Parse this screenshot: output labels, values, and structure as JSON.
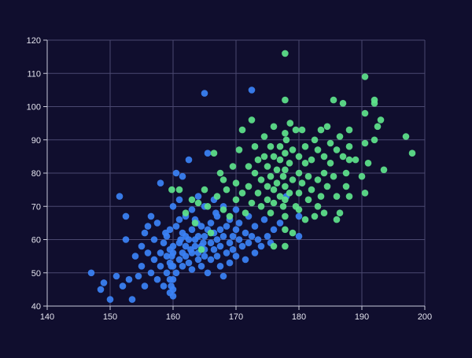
{
  "chart_data": {
    "type": "scatter",
    "title": "",
    "xlabel": "",
    "ylabel": "",
    "xlim": [
      140,
      200
    ],
    "ylim": [
      40,
      120
    ],
    "x_ticks": [
      140,
      150,
      160,
      170,
      180,
      190,
      200
    ],
    "y_ticks": [
      40,
      50,
      60,
      70,
      80,
      90,
      100,
      110,
      120
    ],
    "grid": true,
    "legend": "none",
    "colors": {
      "background": "#100e2e",
      "grid": "#4a4870",
      "axis": "#c9c9d9",
      "tick_text": "#e4e4ee"
    },
    "series": [
      {
        "color": "#3b82f6",
        "points": [
          [
            147,
            50
          ],
          [
            148.5,
            45
          ],
          [
            149,
            47
          ],
          [
            150,
            42
          ],
          [
            151,
            49
          ],
          [
            151.5,
            73
          ],
          [
            152,
            46
          ],
          [
            152.5,
            60
          ],
          [
            152.5,
            67
          ],
          [
            153,
            48
          ],
          [
            153.5,
            42
          ],
          [
            154,
            55
          ],
          [
            154.5,
            49
          ],
          [
            155,
            52
          ],
          [
            155,
            58
          ],
          [
            155.5,
            46
          ],
          [
            155.5,
            62
          ],
          [
            156,
            56
          ],
          [
            156,
            64
          ],
          [
            156.5,
            50
          ],
          [
            156.5,
            67
          ],
          [
            157,
            54
          ],
          [
            157,
            60
          ],
          [
            157.5,
            48
          ],
          [
            157.5,
            65
          ],
          [
            158,
            56
          ],
          [
            158,
            52
          ],
          [
            158,
            77
          ],
          [
            158.5,
            46
          ],
          [
            158.5,
            59
          ],
          [
            159,
            61
          ],
          [
            159,
            55
          ],
          [
            159,
            50
          ],
          [
            159.5,
            57
          ],
          [
            159.5,
            63
          ],
          [
            159.5,
            53
          ],
          [
            159.5,
            48
          ],
          [
            159.5,
            44
          ],
          [
            159.7,
            52
          ],
          [
            159.7,
            46
          ],
          [
            159.8,
            55
          ],
          [
            160,
            58
          ],
          [
            160,
            52
          ],
          [
            160,
            48
          ],
          [
            160,
            45
          ],
          [
            160,
            43
          ],
          [
            160,
            56
          ],
          [
            160,
            70
          ],
          [
            160.5,
            50
          ],
          [
            160.5,
            64
          ],
          [
            160.5,
            80
          ],
          [
            161,
            54
          ],
          [
            161,
            59
          ],
          [
            161,
            66
          ],
          [
            161,
            72
          ],
          [
            161.5,
            56
          ],
          [
            161.5,
            52
          ],
          [
            161.5,
            62
          ],
          [
            161.5,
            79
          ],
          [
            162,
            58
          ],
          [
            162,
            61
          ],
          [
            162,
            55
          ],
          [
            162,
            67
          ],
          [
            162.5,
            53
          ],
          [
            162.5,
            60
          ],
          [
            162.5,
            84
          ],
          [
            163,
            56
          ],
          [
            163,
            63
          ],
          [
            163,
            69
          ],
          [
            163,
            51
          ],
          [
            163.5,
            58
          ],
          [
            163.5,
            66
          ],
          [
            163.5,
            60
          ],
          [
            164,
            54
          ],
          [
            164,
            61
          ],
          [
            164,
            73
          ],
          [
            164,
            56
          ],
          [
            164.5,
            52
          ],
          [
            164.5,
            58
          ],
          [
            164.5,
            64
          ],
          [
            165,
            57
          ],
          [
            165,
            61
          ],
          [
            165,
            70
          ],
          [
            165,
            104
          ],
          [
            165,
            55
          ],
          [
            165.5,
            50
          ],
          [
            165.5,
            63
          ],
          [
            165.5,
            86
          ],
          [
            166,
            59
          ],
          [
            166,
            65
          ],
          [
            166,
            54
          ],
          [
            166.5,
            57
          ],
          [
            166.5,
            62
          ],
          [
            166.5,
            72
          ],
          [
            167,
            60
          ],
          [
            167,
            55
          ],
          [
            167,
            67
          ],
          [
            167.5,
            52
          ],
          [
            167.5,
            63
          ],
          [
            167.5,
            58
          ],
          [
            168,
            61
          ],
          [
            168,
            49
          ],
          [
            168,
            70
          ],
          [
            168.5,
            56
          ],
          [
            168.5,
            64
          ],
          [
            169,
            59
          ],
          [
            169,
            53
          ],
          [
            169,
            66
          ],
          [
            169.5,
            61
          ],
          [
            169.5,
            57
          ],
          [
            170,
            63
          ],
          [
            170,
            55
          ],
          [
            170,
            69
          ],
          [
            170.5,
            60
          ],
          [
            170.5,
            65
          ],
          [
            171,
            58
          ],
          [
            171.5,
            62
          ],
          [
            171.5,
            54
          ],
          [
            172,
            67
          ],
          [
            172,
            59
          ],
          [
            172.5,
            105
          ],
          [
            172.5,
            61
          ],
          [
            173,
            56
          ],
          [
            173,
            64
          ],
          [
            173.5,
            60
          ],
          [
            174,
            58
          ],
          [
            174.5,
            66
          ],
          [
            175,
            61
          ],
          [
            175.5,
            59
          ],
          [
            176,
            63
          ],
          [
            177,
            65
          ],
          [
            178,
            73
          ],
          [
            180,
            67
          ],
          [
            180,
            61
          ],
          [
            161.2,
            60
          ],
          [
            158.8,
            62
          ],
          [
            163.8,
            65
          ],
          [
            166.8,
            68
          ],
          [
            164.8,
            59
          ],
          [
            162.8,
            57
          ]
        ]
      },
      {
        "color": "#5ee38c",
        "points": [
          [
            159.8,
            75
          ],
          [
            161,
            75
          ],
          [
            162,
            68
          ],
          [
            163,
            72
          ],
          [
            163.5,
            65
          ],
          [
            164,
            71
          ],
          [
            164.5,
            57
          ],
          [
            165,
            75
          ],
          [
            165.5,
            70
          ],
          [
            166,
            62
          ],
          [
            166.5,
            86
          ],
          [
            167,
            73
          ],
          [
            167.5,
            80
          ],
          [
            168,
            78
          ],
          [
            168,
            69
          ],
          [
            168.5,
            75
          ],
          [
            169,
            67
          ],
          [
            169.5,
            82
          ],
          [
            170,
            77
          ],
          [
            170,
            72
          ],
          [
            170.5,
            87
          ],
          [
            171,
            93
          ],
          [
            171,
            74
          ],
          [
            171.5,
            68
          ],
          [
            172,
            82
          ],
          [
            172,
            76
          ],
          [
            172.5,
            96
          ],
          [
            172.5,
            71
          ],
          [
            173,
            80
          ],
          [
            173,
            88
          ],
          [
            173.5,
            74
          ],
          [
            173.5,
            84
          ],
          [
            174,
            78
          ],
          [
            174,
            70
          ],
          [
            174.5,
            91
          ],
          [
            174.5,
            85
          ],
          [
            175,
            76
          ],
          [
            175,
            82
          ],
          [
            175,
            72
          ],
          [
            175.5,
            88
          ],
          [
            175.5,
            79
          ],
          [
            175.5,
            68
          ],
          [
            176,
            85
          ],
          [
            176,
            75
          ],
          [
            176,
            94
          ],
          [
            176,
            71
          ],
          [
            176.5,
            81
          ],
          [
            176.5,
            77
          ],
          [
            177,
            88
          ],
          [
            177,
            73
          ],
          [
            177,
            84
          ],
          [
            177.5,
            79
          ],
          [
            177.5,
            70
          ],
          [
            177.8,
            116
          ],
          [
            177.8,
            102
          ],
          [
            177.8,
            92
          ],
          [
            177.8,
            86
          ],
          [
            177.8,
            81
          ],
          [
            177.8,
            76
          ],
          [
            177.8,
            72
          ],
          [
            177.8,
            67
          ],
          [
            177.8,
            63
          ],
          [
            177.8,
            58
          ],
          [
            178,
            90
          ],
          [
            178.5,
            74
          ],
          [
            178.5,
            83
          ],
          [
            179,
            87
          ],
          [
            179,
            78
          ],
          [
            179.5,
            93
          ],
          [
            179.5,
            70
          ],
          [
            180,
            85
          ],
          [
            180,
            80
          ],
          [
            180,
            74
          ],
          [
            180,
            69
          ],
          [
            180.5,
            93
          ],
          [
            180.5,
            77
          ],
          [
            181,
            83
          ],
          [
            181,
            88
          ],
          [
            181.5,
            72
          ],
          [
            181.5,
            79
          ],
          [
            182,
            75
          ],
          [
            182,
            84
          ],
          [
            182.5,
            90
          ],
          [
            182.5,
            67
          ],
          [
            183,
            87
          ],
          [
            183,
            78
          ],
          [
            183.5,
            93
          ],
          [
            183.5,
            73
          ],
          [
            184,
            85
          ],
          [
            184,
            80
          ],
          [
            184.5,
            94
          ],
          [
            184.5,
            76
          ],
          [
            185,
            89
          ],
          [
            185,
            83
          ],
          [
            185.5,
            102
          ],
          [
            185.5,
            79
          ],
          [
            186,
            87
          ],
          [
            186,
            73
          ],
          [
            186.5,
            91
          ],
          [
            186.5,
            68
          ],
          [
            187,
            101
          ],
          [
            187,
            85
          ],
          [
            187.5,
            80
          ],
          [
            187.5,
            76
          ],
          [
            188,
            93
          ],
          [
            188,
            88
          ],
          [
            188,
            84
          ],
          [
            188,
            73
          ],
          [
            189,
            84
          ],
          [
            190,
            79
          ],
          [
            190.5,
            109
          ],
          [
            190.5,
            89
          ],
          [
            190.5,
            98
          ],
          [
            190.5,
            74
          ],
          [
            191,
            83
          ],
          [
            192,
            90
          ],
          [
            192,
            102
          ],
          [
            192,
            101
          ],
          [
            192.5,
            94
          ],
          [
            193,
            96
          ],
          [
            193.5,
            81
          ],
          [
            197,
            91
          ],
          [
            198,
            86
          ],
          [
            184,
            68
          ],
          [
            186,
            66
          ],
          [
            179,
            62
          ],
          [
            176,
            58
          ],
          [
            181,
            66
          ],
          [
            183,
            70
          ],
          [
            178.6,
            95
          ]
        ]
      }
    ]
  }
}
